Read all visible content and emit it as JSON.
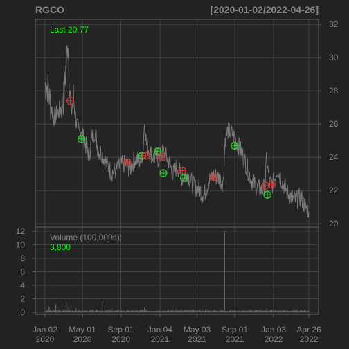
{
  "header": {
    "symbol": "RGCO",
    "date_range": "[2020-01-02/2022-04-26]"
  },
  "colors": {
    "background": "#222222",
    "panel_border": "#666666",
    "grid": "#444444",
    "axis_text": "#888888",
    "price_line": "#7a7a7a",
    "volume_line": "#6a6a6a",
    "last_label": "#00ff00",
    "marker_green": "#33cc33",
    "marker_red": "#cc3333"
  },
  "price_panel": {
    "last_label": "Last 20.77"
  },
  "volume_panel": {
    "label": "Volume (100,000s):",
    "value": "3,800"
  },
  "chart_data": [
    {
      "type": "line",
      "panel": "price",
      "x_range": [
        "2020-01-02",
        "2022-04-26"
      ],
      "ylim": [
        19.8,
        32.3
      ],
      "y_ticks": [
        20,
        22,
        24,
        26,
        28,
        30,
        32
      ],
      "y_tick_side": "right",
      "grid": true,
      "series": [
        {
          "values": [
            [
              "2020-01-02",
              28.4
            ],
            [
              "2020-01-10",
              28.3
            ],
            [
              "2020-01-20",
              27.2
            ],
            [
              "2020-01-30",
              26.4
            ],
            [
              "2020-02-10",
              26.6
            ],
            [
              "2020-02-20",
              26.9
            ],
            [
              "2020-03-02",
              27.6
            ],
            [
              "2020-03-10",
              29.6
            ],
            [
              "2020-03-16",
              31.2
            ],
            [
              "2020-03-20",
              28.6
            ],
            [
              "2020-03-26",
              26.6
            ],
            [
              "2020-04-02",
              27.6
            ],
            [
              "2020-04-10",
              26.2
            ],
            [
              "2020-04-20",
              25.4
            ],
            [
              "2020-04-28",
              25.8
            ],
            [
              "2020-05-06",
              25.0
            ],
            [
              "2020-05-14",
              24.6
            ],
            [
              "2020-05-22",
              24.1
            ],
            [
              "2020-06-01",
              25.2
            ],
            [
              "2020-06-10",
              25.6
            ],
            [
              "2020-06-20",
              24.4
            ],
            [
              "2020-07-01",
              24.3
            ],
            [
              "2020-07-15",
              23.7
            ],
            [
              "2020-08-01",
              23.1
            ],
            [
              "2020-08-15",
              23.2
            ],
            [
              "2020-09-01",
              23.5
            ],
            [
              "2020-09-15",
              23.6
            ],
            [
              "2020-10-01",
              23.3
            ],
            [
              "2020-10-15",
              23.9
            ],
            [
              "2020-11-01",
              23.8
            ],
            [
              "2020-11-10",
              24.3
            ],
            [
              "2020-11-16",
              26.2
            ],
            [
              "2020-11-22",
              24.8
            ],
            [
              "2020-12-01",
              24.4
            ],
            [
              "2020-12-15",
              24.0
            ],
            [
              "2021-01-01",
              23.9
            ],
            [
              "2021-01-15",
              24.3
            ],
            [
              "2021-02-01",
              23.8
            ],
            [
              "2021-02-15",
              23.0
            ],
            [
              "2021-03-01",
              23.5
            ],
            [
              "2021-03-15",
              22.7
            ],
            [
              "2021-04-01",
              23.1
            ],
            [
              "2021-04-12",
              22.6
            ],
            [
              "2021-04-25",
              22.2
            ],
            [
              "2021-05-10",
              22.1
            ],
            [
              "2021-05-25",
              21.7
            ],
            [
              "2021-06-10",
              22.6
            ],
            [
              "2021-06-25",
              22.9
            ],
            [
              "2021-07-10",
              22.8
            ],
            [
              "2021-07-25",
              22.4
            ],
            [
              "2021-08-01",
              25.1
            ],
            [
              "2021-08-10",
              25.6
            ],
            [
              "2021-08-25",
              25.4
            ],
            [
              "2021-09-10",
              24.8
            ],
            [
              "2021-09-25",
              24.2
            ],
            [
              "2021-10-10",
              23.4
            ],
            [
              "2021-10-25",
              22.6
            ],
            [
              "2021-11-10",
              22.2
            ],
            [
              "2021-11-25",
              22.0
            ],
            [
              "2021-12-06",
              22.2
            ],
            [
              "2021-12-12",
              24.0
            ],
            [
              "2021-12-20",
              22.5
            ],
            [
              "2022-01-01",
              22.4
            ],
            [
              "2022-01-15",
              23.3
            ],
            [
              "2022-02-01",
              22.5
            ],
            [
              "2022-02-15",
              21.9
            ],
            [
              "2022-03-01",
              21.6
            ],
            [
              "2022-03-15",
              21.4
            ],
            [
              "2022-04-01",
              21.6
            ],
            [
              "2022-04-15",
              21.0
            ],
            [
              "2022-04-26",
              20.77
            ]
          ]
        }
      ],
      "markers": [
        {
          "date": "2020-03-23",
          "price": 27.4,
          "signal": "red"
        },
        {
          "date": "2020-04-28",
          "price": 25.1,
          "signal": "green"
        },
        {
          "date": "2020-09-22",
          "price": 23.7,
          "signal": "red"
        },
        {
          "date": "2020-11-08",
          "price": 24.1,
          "signal": "green"
        },
        {
          "date": "2020-11-20",
          "price": 24.1,
          "signal": "red"
        },
        {
          "date": "2020-12-28",
          "price": 24.35,
          "signal": "green"
        },
        {
          "date": "2021-01-10",
          "price": 24.0,
          "signal": "red"
        },
        {
          "date": "2021-01-15",
          "price": 23.05,
          "signal": "green"
        },
        {
          "date": "2021-03-17",
          "price": 23.2,
          "signal": "red"
        },
        {
          "date": "2021-03-22",
          "price": 22.75,
          "signal": "green"
        },
        {
          "date": "2021-06-26",
          "price": 22.8,
          "signal": "red"
        },
        {
          "date": "2021-08-31",
          "price": 24.7,
          "signal": "green"
        },
        {
          "date": "2021-12-08",
          "price": 22.3,
          "signal": "red"
        },
        {
          "date": "2021-12-14",
          "price": 21.75,
          "signal": "green"
        },
        {
          "date": "2021-12-28",
          "price": 22.35,
          "signal": "red"
        }
      ]
    },
    {
      "type": "bar",
      "panel": "volume",
      "x_range": [
        "2020-01-02",
        "2022-04-26"
      ],
      "ylim": [
        -0.3,
        12.6
      ],
      "y_ticks": [
        0,
        2,
        4,
        6,
        8,
        10,
        12
      ],
      "y_tick_side": "left",
      "grid": true,
      "series": [
        {
          "name": "Volume (100,000s)",
          "values": [
            [
              "2020-01-15",
              0.8
            ],
            [
              "2020-02-05",
              1.2
            ],
            [
              "2020-03-10",
              1.5
            ],
            [
              "2020-03-18",
              0.9
            ],
            [
              "2020-04-10",
              0.6
            ],
            [
              "2020-07-03",
              1.7
            ],
            [
              "2020-11-16",
              0.7
            ],
            [
              "2021-04-20",
              0.4
            ],
            [
              "2021-07-30",
              12.0
            ],
            [
              "2021-12-12",
              0.5
            ]
          ]
        }
      ]
    }
  ],
  "x_axis": {
    "ticks": [
      {
        "date": "2020-01-02",
        "line1": "Jan 02",
        "line2": "2020"
      },
      {
        "date": "2020-05-01",
        "line1": "May 01",
        "line2": "2020"
      },
      {
        "date": "2020-09-01",
        "line1": "Sep 01",
        "line2": "2020"
      },
      {
        "date": "2021-01-04",
        "line1": "Jan 04",
        "line2": "2021"
      },
      {
        "date": "2021-05-03",
        "line1": "May 03",
        "line2": "2021"
      },
      {
        "date": "2021-09-01",
        "line1": "Sep 01",
        "line2": "2021"
      },
      {
        "date": "2022-01-03",
        "line1": "Jan 03",
        "line2": "2022"
      },
      {
        "date": "2022-04-26",
        "line1": "Apr 26",
        "line2": "2022"
      }
    ]
  }
}
